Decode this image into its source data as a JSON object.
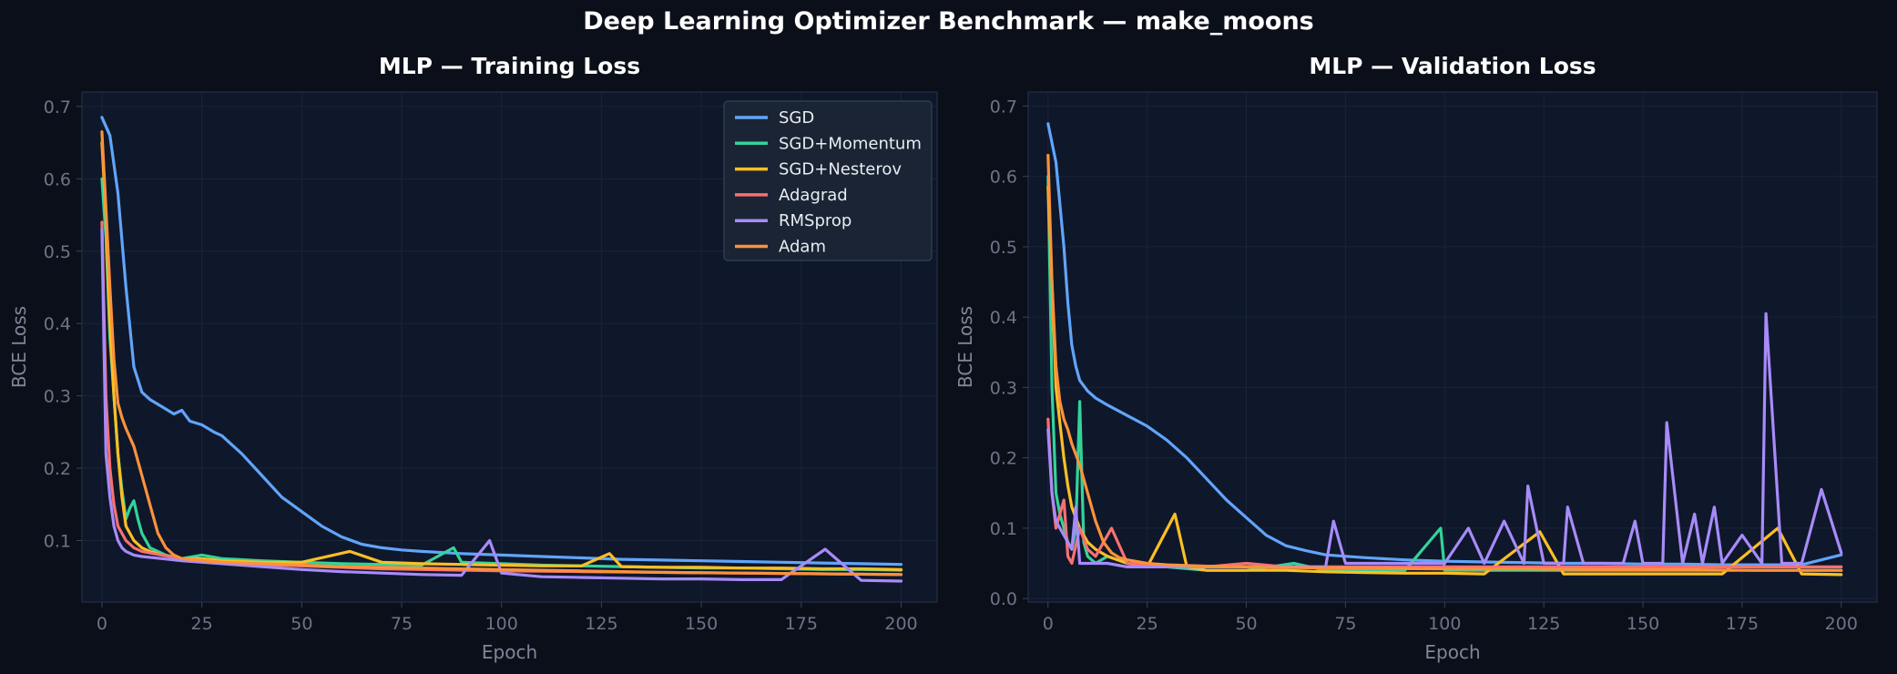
{
  "suptitle": "Deep Learning Optimizer Benchmark — make_moons",
  "colors": {
    "background": "#0b0f19",
    "plot_background": "#0f172a",
    "SGD": "#60a5fa",
    "SGD+Momentum": "#34d399",
    "SGD+Nesterov": "#fbbf24",
    "Adagrad": "#f87171",
    "RMSprop": "#a78bfa",
    "Adam": "#fb923c"
  },
  "chart_data": [
    {
      "type": "line",
      "title": "MLP — Training Loss",
      "xlabel": "Epoch",
      "ylabel": "BCE Loss",
      "xlim": [
        -5,
        209
      ],
      "ylim": [
        0.015,
        0.72
      ],
      "xticks": [
        0,
        25,
        50,
        75,
        100,
        125,
        150,
        175,
        200
      ],
      "yticks": [
        0.1,
        0.2,
        0.3,
        0.4,
        0.5,
        0.6,
        0.7
      ],
      "grid": true,
      "legend": "upper-right",
      "series": [
        {
          "name": "SGD",
          "x": [
            0,
            2,
            4,
            6,
            8,
            10,
            12,
            15,
            18,
            20,
            22,
            25,
            28,
            30,
            35,
            40,
            45,
            50,
            55,
            60,
            65,
            70,
            75,
            80,
            90,
            100,
            110,
            120,
            130,
            140,
            150,
            160,
            170,
            180,
            190,
            200
          ],
          "y": [
            0.685,
            0.66,
            0.58,
            0.45,
            0.34,
            0.305,
            0.295,
            0.285,
            0.275,
            0.28,
            0.265,
            0.26,
            0.25,
            0.245,
            0.22,
            0.19,
            0.16,
            0.14,
            0.12,
            0.105,
            0.095,
            0.09,
            0.087,
            0.085,
            0.082,
            0.08,
            0.078,
            0.076,
            0.074,
            0.073,
            0.072,
            0.071,
            0.07,
            0.069,
            0.068,
            0.067
          ]
        },
        {
          "name": "SGD+Momentum",
          "x": [
            0,
            1,
            2,
            3,
            4,
            5,
            6,
            7,
            8,
            9,
            10,
            12,
            14,
            16,
            20,
            25,
            30,
            40,
            50,
            60,
            70,
            80,
            88,
            90,
            100,
            110,
            120,
            130,
            140,
            150,
            160,
            170,
            180,
            190,
            200
          ],
          "y": [
            0.6,
            0.52,
            0.38,
            0.3,
            0.22,
            0.17,
            0.13,
            0.145,
            0.155,
            0.13,
            0.11,
            0.09,
            0.085,
            0.08,
            0.075,
            0.08,
            0.075,
            0.072,
            0.07,
            0.068,
            0.067,
            0.066,
            0.09,
            0.07,
            0.068,
            0.066,
            0.065,
            0.064,
            0.063,
            0.062,
            0.062,
            0.061,
            0.06,
            0.06,
            0.059
          ]
        },
        {
          "name": "SGD+Nesterov",
          "x": [
            0,
            1,
            2,
            3,
            4,
            5,
            6,
            8,
            10,
            12,
            15,
            20,
            25,
            30,
            40,
            50,
            62,
            70,
            80,
            90,
            100,
            110,
            120,
            127,
            130,
            140,
            150,
            160,
            170,
            180,
            190,
            200
          ],
          "y": [
            0.65,
            0.55,
            0.4,
            0.3,
            0.22,
            0.16,
            0.12,
            0.1,
            0.09,
            0.085,
            0.08,
            0.075,
            0.075,
            0.072,
            0.07,
            0.07,
            0.085,
            0.07,
            0.068,
            0.067,
            0.066,
            0.065,
            0.065,
            0.082,
            0.064,
            0.063,
            0.063,
            0.062,
            0.062,
            0.061,
            0.061,
            0.06
          ]
        },
        {
          "name": "Adagrad",
          "x": [
            0,
            1,
            2,
            3,
            4,
            6,
            8,
            10,
            15,
            20,
            30,
            40,
            50,
            60,
            70,
            80,
            90,
            100,
            120,
            140,
            160,
            180,
            200
          ],
          "y": [
            0.54,
            0.3,
            0.2,
            0.15,
            0.12,
            0.1,
            0.09,
            0.085,
            0.08,
            0.075,
            0.07,
            0.067,
            0.065,
            0.063,
            0.061,
            0.06,
            0.059,
            0.058,
            0.057,
            0.056,
            0.055,
            0.054,
            0.053
          ]
        },
        {
          "name": "RMSprop",
          "x": [
            0,
            1,
            2,
            3,
            4,
            5,
            6,
            8,
            10,
            15,
            20,
            30,
            40,
            50,
            60,
            70,
            80,
            90,
            97,
            100,
            110,
            120,
            130,
            140,
            150,
            160,
            170,
            181,
            190,
            200
          ],
          "y": [
            0.53,
            0.22,
            0.16,
            0.12,
            0.1,
            0.09,
            0.085,
            0.08,
            0.078,
            0.075,
            0.072,
            0.068,
            0.064,
            0.06,
            0.057,
            0.055,
            0.053,
            0.052,
            0.1,
            0.055,
            0.05,
            0.049,
            0.048,
            0.047,
            0.047,
            0.046,
            0.046,
            0.088,
            0.045,
            0.044
          ]
        },
        {
          "name": "Adam",
          "x": [
            0,
            1,
            2,
            3,
            4,
            5,
            6,
            8,
            10,
            12,
            14,
            16,
            18,
            20,
            25,
            30,
            40,
            50,
            60,
            80,
            100,
            120,
            140,
            160,
            180,
            200
          ],
          "y": [
            0.665,
            0.56,
            0.45,
            0.35,
            0.29,
            0.27,
            0.255,
            0.23,
            0.19,
            0.15,
            0.11,
            0.09,
            0.08,
            0.075,
            0.072,
            0.07,
            0.068,
            0.066,
            0.064,
            0.062,
            0.06,
            0.058,
            0.056,
            0.055,
            0.054,
            0.053
          ]
        }
      ]
    },
    {
      "type": "line",
      "title": "MLP — Validation Loss",
      "xlabel": "Epoch",
      "ylabel": "BCE Loss",
      "xlim": [
        -5,
        209
      ],
      "ylim": [
        -0.005,
        0.72
      ],
      "xticks": [
        0,
        25,
        50,
        75,
        100,
        125,
        150,
        175,
        200
      ],
      "yticks": [
        0.0,
        0.1,
        0.2,
        0.3,
        0.4,
        0.5,
        0.6,
        0.7
      ],
      "grid": true,
      "series": [
        {
          "name": "SGD",
          "x": [
            0,
            2,
            4,
            5,
            6,
            7,
            8,
            10,
            12,
            15,
            20,
            25,
            30,
            35,
            40,
            45,
            50,
            55,
            60,
            65,
            70,
            80,
            90,
            100,
            110,
            120,
            130,
            140,
            150,
            160,
            170,
            180,
            190,
            200
          ],
          "y": [
            0.675,
            0.62,
            0.5,
            0.42,
            0.36,
            0.33,
            0.31,
            0.295,
            0.285,
            0.275,
            0.26,
            0.245,
            0.225,
            0.2,
            0.17,
            0.14,
            0.115,
            0.09,
            0.075,
            0.068,
            0.062,
            0.058,
            0.055,
            0.053,
            0.052,
            0.051,
            0.05,
            0.05,
            0.049,
            0.049,
            0.048,
            0.048,
            0.048,
            0.062
          ]
        },
        {
          "name": "SGD+Momentum",
          "x": [
            0,
            1,
            2,
            3,
            4,
            5,
            6,
            7,
            8,
            9,
            10,
            12,
            15,
            20,
            30,
            40,
            50,
            62,
            70,
            80,
            90,
            99,
            100,
            110,
            120,
            130,
            140,
            150,
            160,
            170,
            180,
            190,
            200
          ],
          "y": [
            0.6,
            0.3,
            0.15,
            0.12,
            0.1,
            0.08,
            0.07,
            0.1,
            0.28,
            0.08,
            0.06,
            0.05,
            0.06,
            0.05,
            0.045,
            0.04,
            0.04,
            0.05,
            0.04,
            0.04,
            0.04,
            0.1,
            0.04,
            0.04,
            0.04,
            0.04,
            0.04,
            0.04,
            0.04,
            0.04,
            0.04,
            0.04,
            0.04
          ]
        },
        {
          "name": "SGD+Nesterov",
          "x": [
            0,
            1,
            2,
            3,
            4,
            5,
            6,
            8,
            10,
            12,
            15,
            20,
            25,
            32,
            35,
            40,
            50,
            60,
            70,
            80,
            90,
            100,
            110,
            124,
            130,
            140,
            150,
            160,
            170,
            184,
            190,
            200
          ],
          "y": [
            0.585,
            0.45,
            0.3,
            0.25,
            0.2,
            0.16,
            0.13,
            0.1,
            0.08,
            0.07,
            0.06,
            0.05,
            0.045,
            0.12,
            0.045,
            0.04,
            0.04,
            0.04,
            0.038,
            0.037,
            0.036,
            0.036,
            0.035,
            0.095,
            0.035,
            0.035,
            0.035,
            0.035,
            0.035,
            0.1,
            0.035,
            0.034
          ]
        },
        {
          "name": "Adagrad",
          "x": [
            0,
            1,
            2,
            3,
            4,
            5,
            6,
            8,
            10,
            12,
            16,
            20,
            30,
            40,
            50,
            60,
            70,
            80,
            100,
            120,
            140,
            160,
            180,
            200
          ],
          "y": [
            0.255,
            0.15,
            0.1,
            0.12,
            0.14,
            0.06,
            0.05,
            0.1,
            0.07,
            0.06,
            0.1,
            0.05,
            0.045,
            0.045,
            0.05,
            0.045,
            0.045,
            0.045,
            0.045,
            0.045,
            0.045,
            0.045,
            0.045,
            0.045
          ]
        },
        {
          "name": "RMSprop",
          "x": [
            0,
            1,
            2,
            3,
            4,
            5,
            6,
            7,
            8,
            9,
            10,
            12,
            15,
            20,
            25,
            30,
            35,
            40,
            50,
            60,
            70,
            72,
            75,
            80,
            90,
            100,
            106,
            110,
            115,
            120,
            121,
            125,
            130,
            131,
            135,
            140,
            145,
            148,
            150,
            155,
            156,
            160,
            163,
            165,
            168,
            170,
            175,
            180,
            181,
            185,
            190,
            195,
            200
          ],
          "y": [
            0.24,
            0.15,
            0.11,
            0.1,
            0.09,
            0.08,
            0.07,
            0.13,
            0.05,
            0.05,
            0.05,
            0.05,
            0.05,
            0.045,
            0.045,
            0.045,
            0.045,
            0.045,
            0.045,
            0.045,
            0.045,
            0.11,
            0.05,
            0.05,
            0.05,
            0.05,
            0.1,
            0.05,
            0.11,
            0.05,
            0.16,
            0.05,
            0.05,
            0.13,
            0.05,
            0.05,
            0.05,
            0.11,
            0.05,
            0.05,
            0.25,
            0.05,
            0.12,
            0.05,
            0.13,
            0.05,
            0.09,
            0.05,
            0.405,
            0.05,
            0.05,
            0.155,
            0.065
          ]
        },
        {
          "name": "Adam",
          "x": [
            0,
            1,
            2,
            3,
            4,
            5,
            6,
            8,
            10,
            12,
            14,
            16,
            18,
            20,
            25,
            30,
            40,
            50,
            60,
            80,
            100,
            120,
            140,
            160,
            180,
            200
          ],
          "y": [
            0.63,
            0.45,
            0.33,
            0.28,
            0.255,
            0.24,
            0.22,
            0.19,
            0.15,
            0.11,
            0.08,
            0.065,
            0.058,
            0.055,
            0.05,
            0.048,
            0.046,
            0.045,
            0.044,
            0.043,
            0.042,
            0.042,
            0.041,
            0.041,
            0.04,
            0.04
          ]
        }
      ]
    }
  ]
}
